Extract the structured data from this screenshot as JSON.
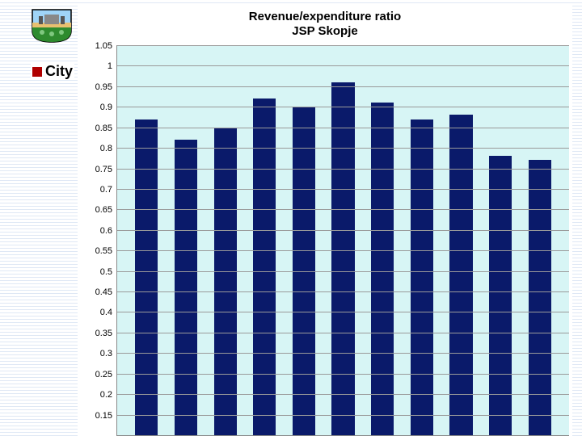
{
  "header": {
    "city_label": "City"
  },
  "chart": {
    "type": "bar",
    "title_line1": "Revenue/expenditure ratio",
    "title_line2": "JSP Skopje",
    "title_fontsize": 15,
    "ytick_min": 0.1,
    "ytick_max": 1.05,
    "ytick_step": 0.05,
    "ylabels": [
      "1.05",
      "1",
      "0.95",
      "0.9",
      "0.85",
      "0.8",
      "0.75",
      "0.7",
      "0.65",
      "0.6",
      "0.55",
      "0.5",
      "0.45",
      "0.4",
      "0.35",
      "0.3",
      "0.25",
      "0.2",
      "0.15"
    ],
    "values": [
      0.87,
      0.82,
      0.85,
      0.92,
      0.9,
      0.96,
      0.91,
      0.87,
      0.88,
      0.78,
      0.77
    ],
    "bar_color": "#0a1a6a",
    "background_color": "#d7f5f5",
    "grid_color": "#9a9a9a",
    "bar_width_pct": 58
  },
  "logos": {
    "left_shield_sky": "#9fd4f7",
    "left_shield_ground": "#2e8b2e",
    "left_shield_band": "#e8c070",
    "eu_flag_bg": "#003399",
    "eu_star_color": "#ffcc00"
  }
}
